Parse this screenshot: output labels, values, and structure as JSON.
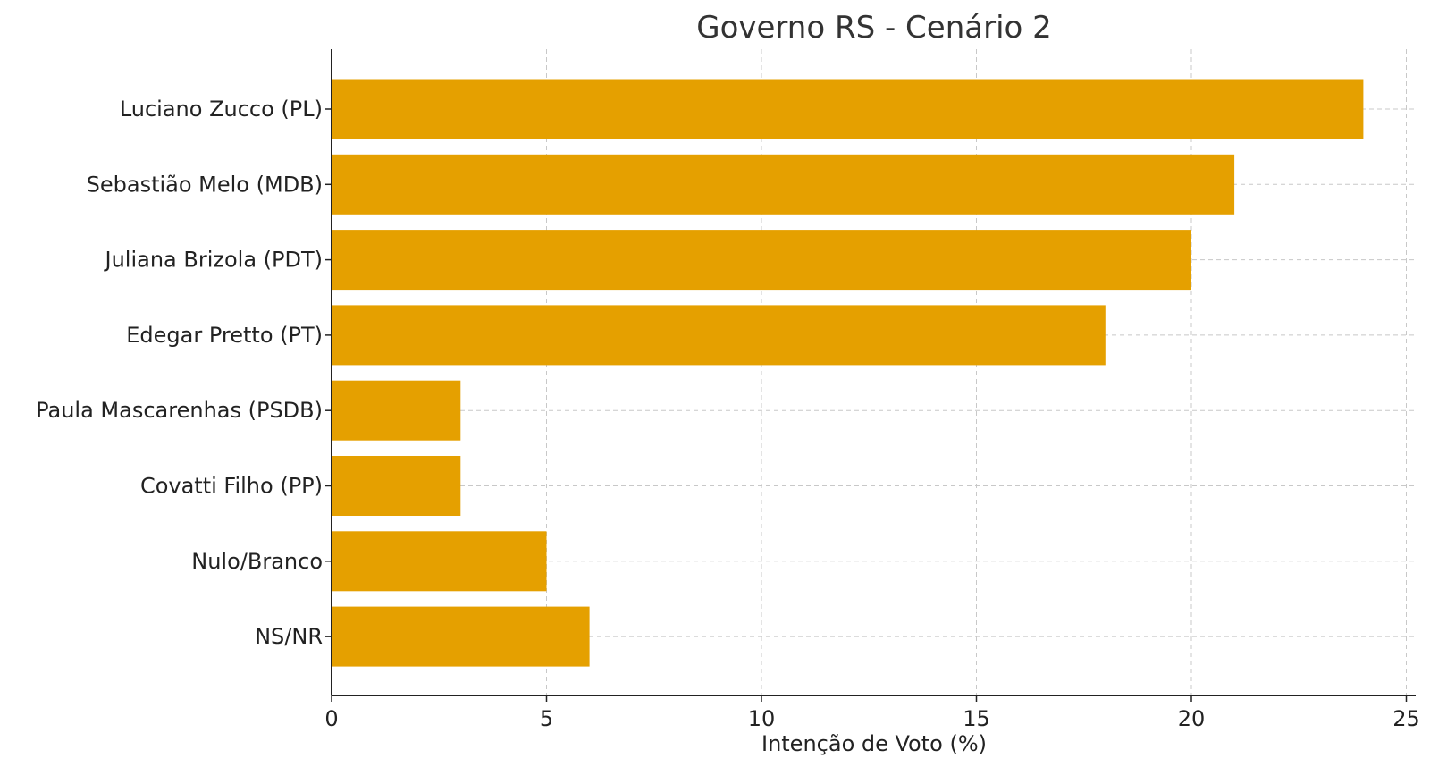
{
  "chart_data": {
    "type": "bar",
    "orientation": "horizontal",
    "title": "Governo RS - Cenário 2",
    "xlabel": "Intenção de Voto (%)",
    "ylabel": "",
    "categories": [
      "Luciano Zucco (PL)",
      "Sebastião Melo (MDB)",
      "Juliana Brizola (PDT)",
      "Edegar Pretto (PT)",
      "Paula Mascarenhas (PSDB)",
      "Covatti Filho (PP)",
      "Nulo/Branco",
      "NS/NR"
    ],
    "values": [
      24,
      21,
      20,
      18,
      3,
      3,
      5,
      6
    ],
    "xlim": [
      0,
      25
    ],
    "xticks": [
      0,
      5,
      10,
      15,
      20,
      25
    ],
    "grid": true,
    "bar_color": "#E5A000"
  }
}
